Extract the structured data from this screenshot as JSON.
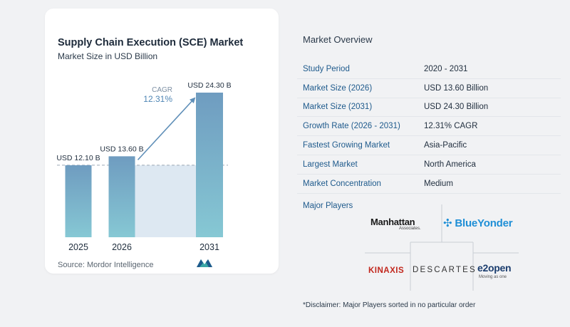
{
  "chart_data": {
    "type": "bar",
    "title": "Supply Chain Execution (SCE) Market",
    "subtitle": "Market Size in USD Billion",
    "categories": [
      "2025",
      "2026",
      "2031"
    ],
    "values": [
      12.1,
      13.6,
      24.3
    ],
    "data_labels": [
      "USD 12.10 B",
      "USD 13.60 B",
      "USD 24.30 B"
    ],
    "ylim": [
      0,
      24.3
    ],
    "cagr_label": "CAGR",
    "cagr_value": "12.31%",
    "grid": false,
    "colors": {
      "bar_top": "#6f9cc0",
      "bar_bottom": "#86c8d4",
      "shade": "#dde8f2",
      "arrow": "#5f8fb8"
    }
  },
  "source": "Source:  Mordor Intelligence",
  "source_logo_icon": "mordor-logo-icon",
  "overview": {
    "title": "Market Overview",
    "rows": [
      {
        "label": "Study Period",
        "value": "2020 - 2031"
      },
      {
        "label": "Market Size (2026)",
        "value": "USD 13.60 Billion"
      },
      {
        "label": "Market Size (2031)",
        "value": "USD 24.30 Billion"
      },
      {
        "label": "Growth Rate (2026 - 2031)",
        "value": "12.31% CAGR"
      },
      {
        "label": "Fastest Growing Market",
        "value": "Asia-Pacific"
      },
      {
        "label": "Largest Market",
        "value": "North America"
      },
      {
        "label": "Market Concentration",
        "value": "Medium"
      }
    ]
  },
  "players": {
    "title": "Major Players",
    "manhattan": {
      "name": "Manhattan",
      "sub": "Associates."
    },
    "blueyonder": "BlueYonder",
    "kinaxis": "KINAXIS",
    "descartes": "DESCARTES",
    "e2open": {
      "name": "e2open",
      "tag": "Moving as one"
    }
  },
  "disclaimer": "*Disclaimer: Major Players sorted in no particular order"
}
